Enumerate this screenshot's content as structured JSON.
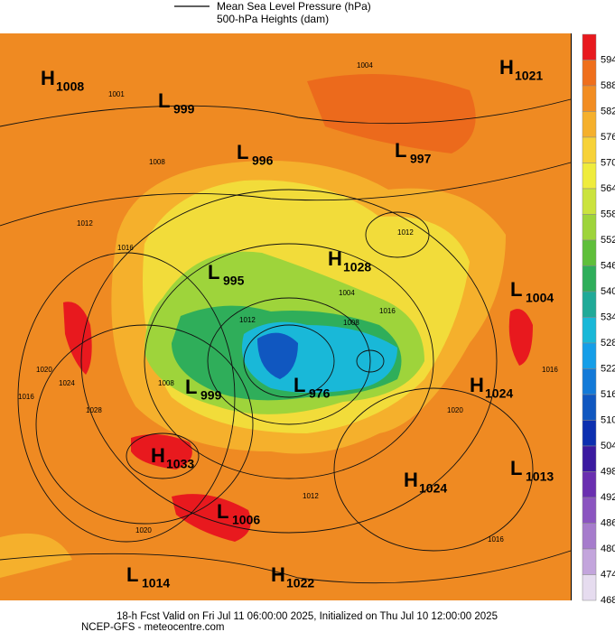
{
  "legend": {
    "line_label": "Mean Sea Level Pressure (hPa)",
    "shade_label": "500-hPa Heights (dam)"
  },
  "pressure_centers": [
    {
      "type": "H",
      "value": "1008"
    },
    {
      "type": "L",
      "value": "999"
    },
    {
      "type": "L",
      "value": "996"
    },
    {
      "type": "L",
      "value": "997"
    },
    {
      "type": "H",
      "value": "1021"
    },
    {
      "type": "H",
      "value": "1028"
    },
    {
      "type": "L",
      "value": "995"
    },
    {
      "type": "L",
      "value": "1004"
    },
    {
      "type": "L",
      "value": "976"
    },
    {
      "type": "L",
      "value": "999"
    },
    {
      "type": "H",
      "value": "1024"
    },
    {
      "type": "H",
      "value": "1033"
    },
    {
      "type": "H",
      "value": "1024"
    },
    {
      "type": "L",
      "value": "1013"
    },
    {
      "type": "L",
      "value": "1006"
    },
    {
      "type": "L",
      "value": "1014"
    },
    {
      "type": "H",
      "value": "1022"
    }
  ],
  "contour_labels": [
    "1004",
    "1001",
    "1008",
    "1012",
    "1016",
    "1020",
    "1024",
    "1028",
    "1012",
    "1008",
    "1004",
    "1016",
    "1008",
    "1012",
    "1020",
    "1016",
    "1020",
    "1016",
    "1012",
    "1016"
  ],
  "colorbar": {
    "ticks": [
      {
        "value": 594,
        "color": "#e8191e"
      },
      {
        "value": 588,
        "color": "#ef6f1c"
      },
      {
        "value": 582,
        "color": "#f28d22"
      },
      {
        "value": 576,
        "color": "#f5b02c"
      },
      {
        "value": 570,
        "color": "#f7d238"
      },
      {
        "value": 564,
        "color": "#efec3d"
      },
      {
        "value": 558,
        "color": "#cbe33e"
      },
      {
        "value": 552,
        "color": "#9ed43b"
      },
      {
        "value": 546,
        "color": "#5fbf3a"
      },
      {
        "value": 540,
        "color": "#2fae5a"
      },
      {
        "value": 534,
        "color": "#20aa98"
      },
      {
        "value": 528,
        "color": "#19b8d8"
      },
      {
        "value": 522,
        "color": "#159ee8"
      },
      {
        "value": 516,
        "color": "#137ad8"
      },
      {
        "value": 510,
        "color": "#1057c0"
      },
      {
        "value": 504,
        "color": "#0c2fb0"
      },
      {
        "value": 498,
        "color": "#3b1aa0"
      },
      {
        "value": 492,
        "color": "#6a2fb0"
      },
      {
        "value": 486,
        "color": "#8b55c0"
      },
      {
        "value": 480,
        "color": "#a67ccc"
      },
      {
        "value": 474,
        "color": "#c3a5dc"
      },
      {
        "value": 468,
        "color": "#e6dcef"
      }
    ]
  },
  "footer": {
    "line1": "18-h Fcst Valid on Fri Jul 11 06:00:00 2025, Initialized on Thu Jul 10 12:00:00 2025",
    "line2": "NCEP-GFS - meteocentre.com"
  }
}
